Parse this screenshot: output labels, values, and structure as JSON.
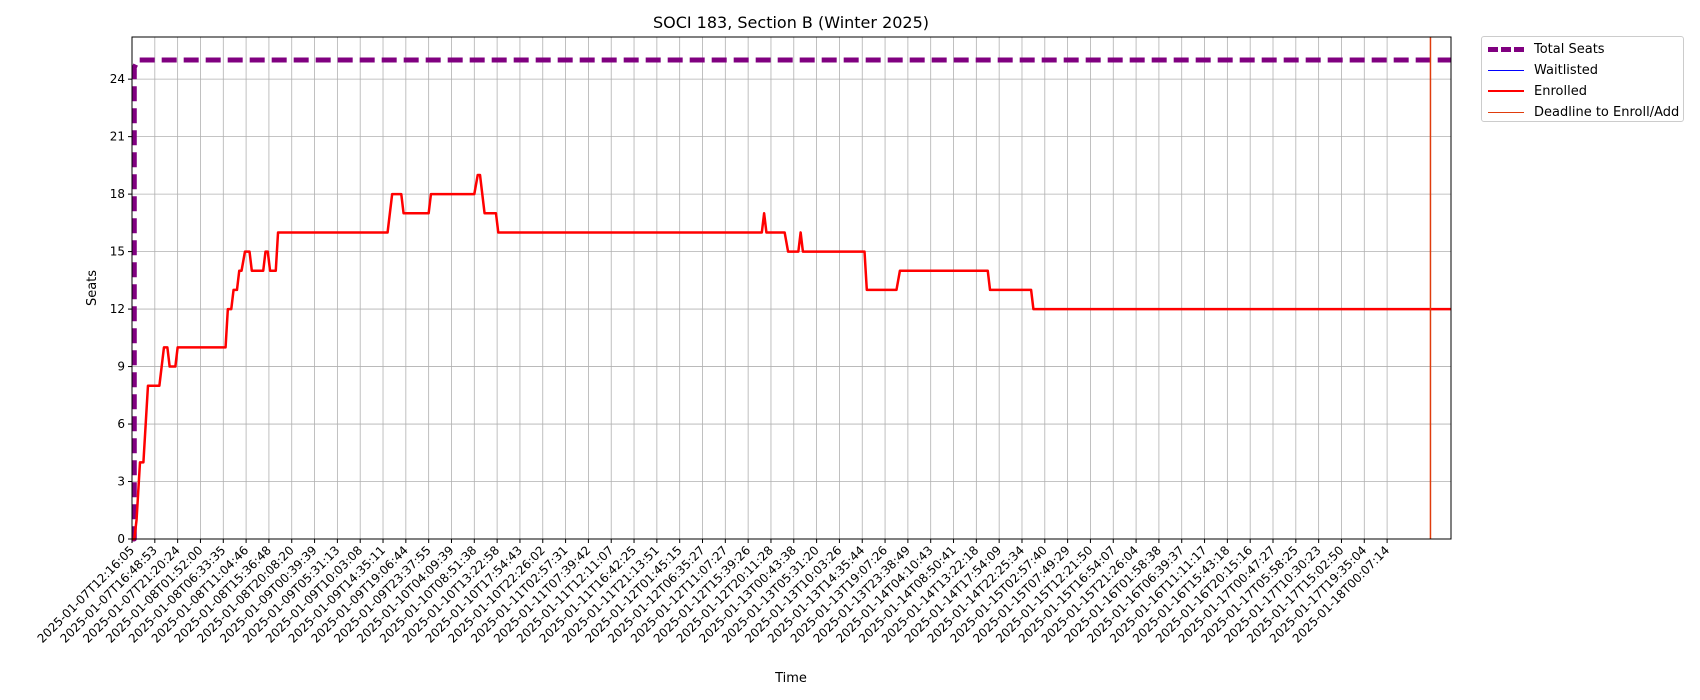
{
  "chart_data": {
    "type": "line",
    "title": "SOCI 183, Section B (Winter 2025)",
    "xlabel": "Time",
    "ylabel": "Seats",
    "ylim": [
      0,
      26.2
    ],
    "yticks": [
      0,
      3,
      6,
      9,
      12,
      15,
      18,
      21,
      24
    ],
    "grid": true,
    "legend_position": "outside-upper-right",
    "x_tick_labels": [
      "2025-01-07T12:16:05",
      "2025-01-07T16:48:53",
      "2025-01-07T21:20:24",
      "2025-01-08T01:52:00",
      "2025-01-08T06:33:35",
      "2025-01-08T11:04:46",
      "2025-01-08T15:36:48",
      "2025-01-08T20:08:20",
      "2025-01-09T00:39:39",
      "2025-01-09T05:31:13",
      "2025-01-09T10:03:08",
      "2025-01-09T14:35:11",
      "2025-01-09T19:06:44",
      "2025-01-09T23:37:55",
      "2025-01-10T04:09:39",
      "2025-01-10T08:51:38",
      "2025-01-10T13:22:58",
      "2025-01-10T17:54:43",
      "2025-01-10T22:26:02",
      "2025-01-11T02:57:31",
      "2025-01-11T07:39:42",
      "2025-01-11T12:11:07",
      "2025-01-11T16:42:25",
      "2025-01-11T21:13:51",
      "2025-01-12T01:45:15",
      "2025-01-12T06:35:27",
      "2025-01-12T11:07:27",
      "2025-01-12T15:39:26",
      "2025-01-12T20:11:28",
      "2025-01-13T00:43:38",
      "2025-01-13T05:31:20",
      "2025-01-13T10:03:26",
      "2025-01-13T14:35:44",
      "2025-01-13T19:07:26",
      "2025-01-13T23:38:49",
      "2025-01-14T04:10:43",
      "2025-01-14T08:50:41",
      "2025-01-14T13:22:18",
      "2025-01-14T17:54:09",
      "2025-01-14T22:25:34",
      "2025-01-15T02:57:40",
      "2025-01-15T07:49:29",
      "2025-01-15T12:21:50",
      "2025-01-15T16:54:07",
      "2025-01-15T21:26:04",
      "2025-01-16T01:58:38",
      "2025-01-16T06:39:37",
      "2025-01-16T11:11:17",
      "2025-01-16T15:43:18",
      "2025-01-16T20:15:16",
      "2025-01-17T00:47:27",
      "2025-01-17T05:58:25",
      "2025-01-17T10:30:23",
      "2025-01-17T15:02:50",
      "2025-01-17T19:35:04",
      "2025-01-18T00:07:14"
    ],
    "x_range": [
      0,
      57.8
    ],
    "series": [
      {
        "name": "Total Seats",
        "color": "#800080",
        "style": "dashed",
        "points": [
          [
            0,
            0
          ],
          [
            0.1,
            0
          ],
          [
            0.1,
            24.6
          ],
          [
            0.25,
            25
          ],
          [
            57.8,
            25
          ]
        ]
      },
      {
        "name": "Waitlisted",
        "color": "#0000ff",
        "style": "solid",
        "points": []
      },
      {
        "name": "Enrolled",
        "color": "#ff0000",
        "style": "solid",
        "points": [
          [
            0,
            0
          ],
          [
            0.1,
            0
          ],
          [
            0.2,
            1
          ],
          [
            0.35,
            4
          ],
          [
            0.5,
            4
          ],
          [
            0.7,
            8
          ],
          [
            1.2,
            8
          ],
          [
            1.4,
            10
          ],
          [
            1.55,
            10
          ],
          [
            1.65,
            9
          ],
          [
            1.9,
            9
          ],
          [
            2.0,
            10
          ],
          [
            4.1,
            10
          ],
          [
            4.2,
            12
          ],
          [
            4.35,
            12
          ],
          [
            4.45,
            13
          ],
          [
            4.6,
            13
          ],
          [
            4.7,
            14
          ],
          [
            4.8,
            14
          ],
          [
            4.95,
            15
          ],
          [
            5.15,
            15
          ],
          [
            5.25,
            14
          ],
          [
            5.75,
            14
          ],
          [
            5.85,
            15
          ],
          [
            5.95,
            15
          ],
          [
            6.05,
            14
          ],
          [
            6.3,
            14
          ],
          [
            6.4,
            16
          ],
          [
            11.2,
            16
          ],
          [
            11.4,
            18
          ],
          [
            11.8,
            18
          ],
          [
            11.9,
            17
          ],
          [
            13.0,
            17
          ],
          [
            13.1,
            18
          ],
          [
            15.0,
            18
          ],
          [
            15.15,
            19
          ],
          [
            15.25,
            19
          ],
          [
            15.45,
            17
          ],
          [
            15.95,
            17
          ],
          [
            16.05,
            16
          ],
          [
            27.6,
            16
          ],
          [
            27.7,
            17
          ],
          [
            27.8,
            16
          ],
          [
            28.6,
            16
          ],
          [
            28.75,
            15
          ],
          [
            29.2,
            15
          ],
          [
            29.3,
            16
          ],
          [
            29.4,
            15
          ],
          [
            32.1,
            15
          ],
          [
            32.2,
            13
          ],
          [
            33.5,
            13
          ],
          [
            33.65,
            14
          ],
          [
            37.5,
            14
          ],
          [
            37.6,
            13
          ],
          [
            39.4,
            13
          ],
          [
            39.5,
            12
          ],
          [
            57.8,
            12
          ]
        ]
      }
    ],
    "annotations": [
      {
        "name": "Deadline to Enroll/Add",
        "type": "vline",
        "x": 56.9,
        "color": "#e03c0c"
      }
    ],
    "legend": [
      {
        "label": "Total Seats",
        "color": "#800080",
        "style": "dashed"
      },
      {
        "label": "Waitlisted",
        "color": "#0000ff",
        "style": "solid"
      },
      {
        "label": "Enrolled",
        "color": "#ff0000",
        "style": "solid"
      },
      {
        "label": "Deadline to Enroll/Add",
        "color": "#e03c0c",
        "style": "solid"
      }
    ]
  }
}
